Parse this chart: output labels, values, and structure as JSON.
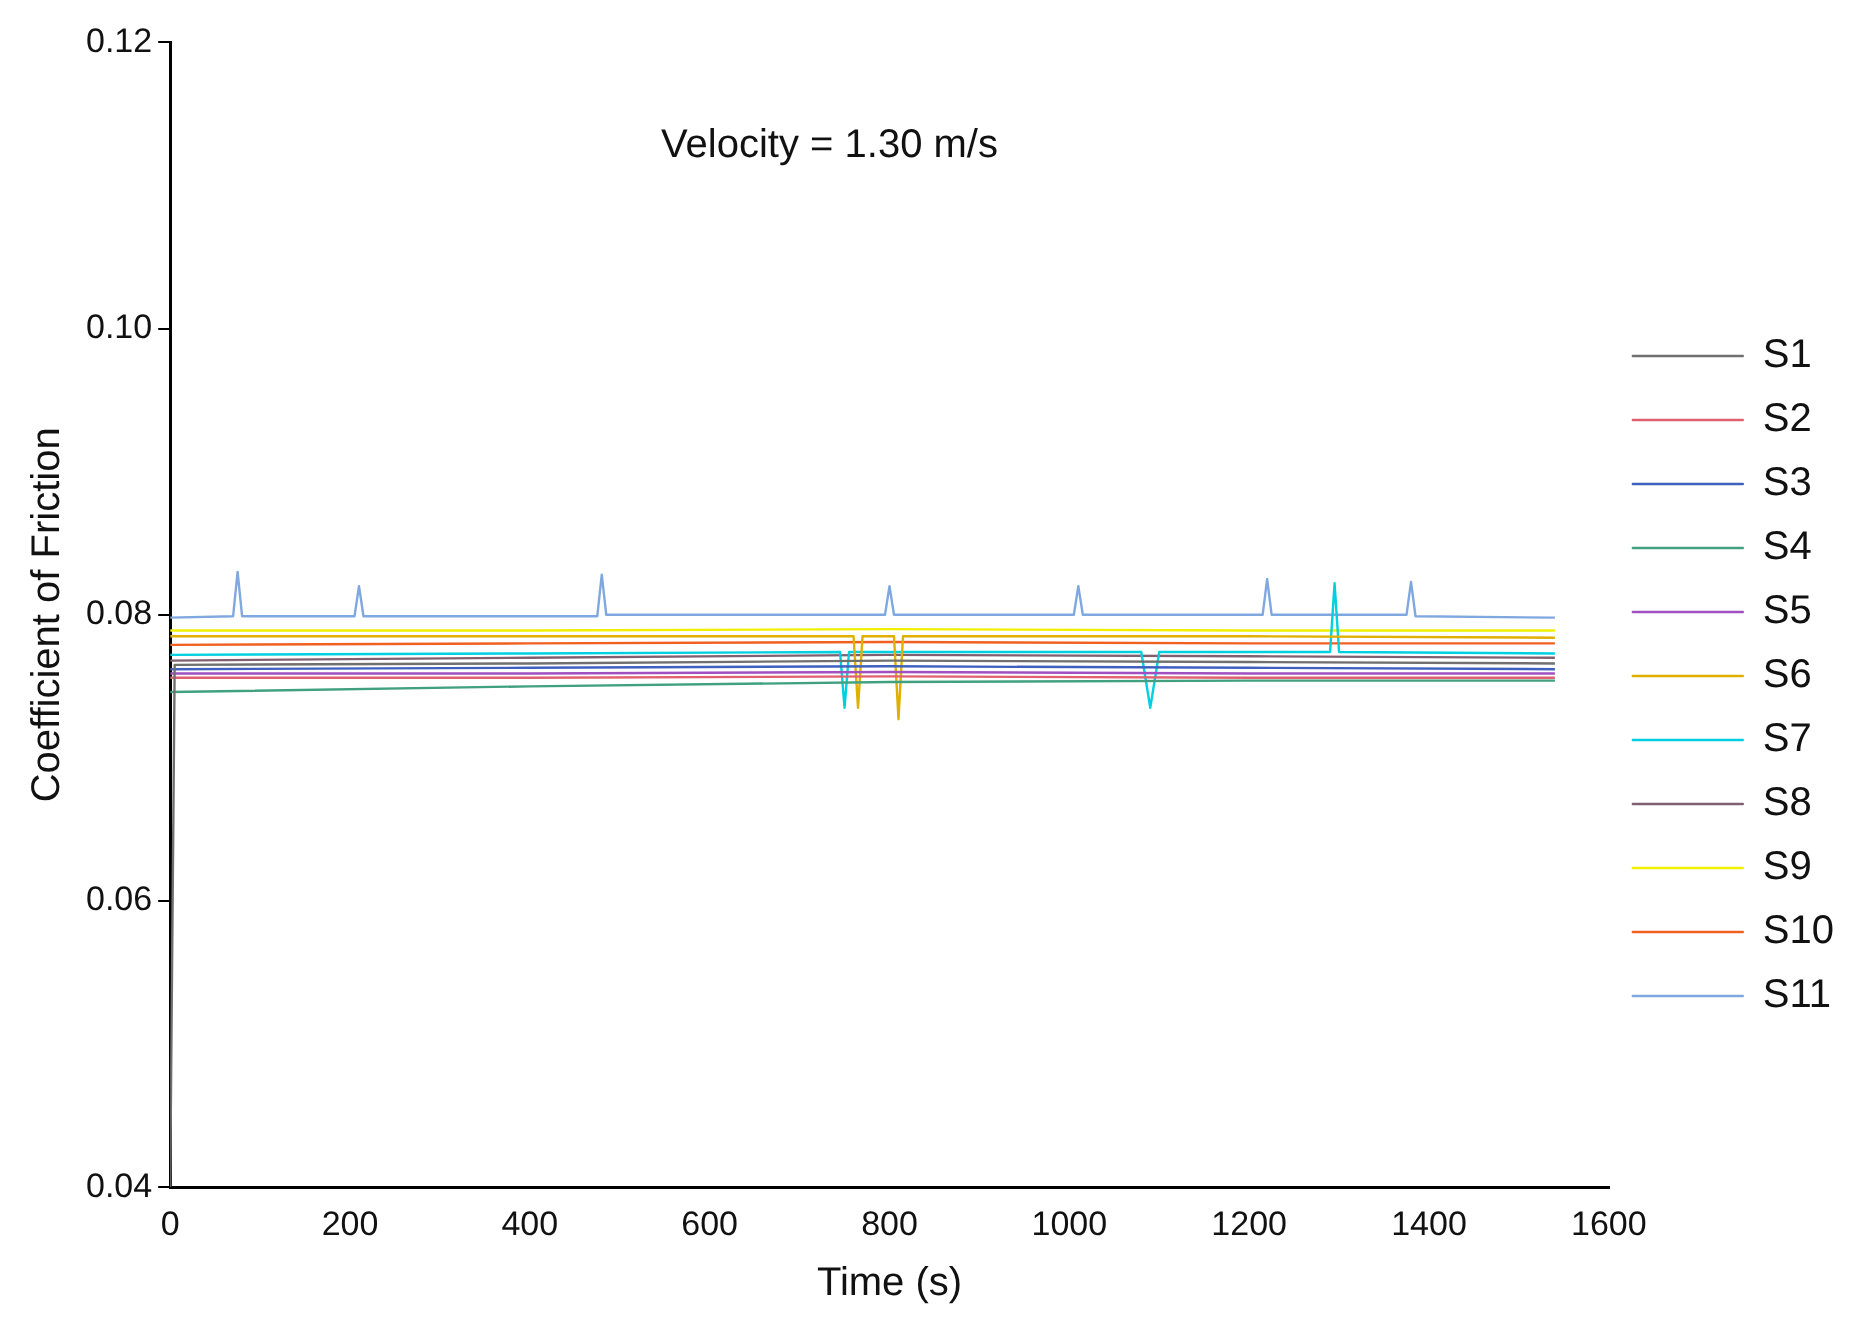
{
  "chart_data": {
    "type": "line",
    "xlabel": "Time (s)",
    "ylabel": "Coefficient of Friction",
    "annotations": [
      "Velocity = 1.30 m/s"
    ],
    "xlim": [
      0,
      1600
    ],
    "xticks": [
      0,
      200,
      400,
      600,
      800,
      1000,
      1200,
      1400,
      1600
    ],
    "ylim": [
      0.04,
      0.12
    ],
    "yticks": [
      {
        "value": 0.04,
        "label": "0.04"
      },
      {
        "value": 0.06,
        "label": "0.06"
      },
      {
        "value": 0.08,
        "label": "0.08"
      },
      {
        "value": 0.1,
        "label": "0.10"
      },
      {
        "value": 0.12,
        "label": "0.12"
      }
    ],
    "grid": false,
    "legend": "right",
    "marker": "none",
    "line_style": "solid",
    "series": [
      {
        "name": "S1",
        "color": "#707070",
        "x": [
          0,
          5,
          400,
          800,
          1200,
          1540
        ],
        "values": [
          0.04,
          0.0765,
          0.0766,
          0.0768,
          0.0767,
          0.0766
        ]
      },
      {
        "name": "S2",
        "color": "#e06070",
        "x": [
          0,
          400,
          800,
          1200,
          1540
        ],
        "values": [
          0.0756,
          0.0756,
          0.0757,
          0.0756,
          0.0756
        ]
      },
      {
        "name": "S3",
        "color": "#4060c0",
        "x": [
          0,
          400,
          800,
          1200,
          1540
        ],
        "values": [
          0.0762,
          0.0763,
          0.0764,
          0.0763,
          0.0762
        ]
      },
      {
        "name": "S4",
        "color": "#40a080",
        "x": [
          0,
          400,
          800,
          1200,
          1540
        ],
        "values": [
          0.0746,
          0.075,
          0.0753,
          0.0754,
          0.0754
        ]
      },
      {
        "name": "S5",
        "color": "#a050c0",
        "x": [
          0,
          400,
          800,
          1200,
          1540
        ],
        "values": [
          0.0759,
          0.0759,
          0.076,
          0.0759,
          0.0759
        ]
      },
      {
        "name": "S6",
        "color": "#e0b000",
        "x": [
          0,
          400,
          760,
          765,
          770,
          805,
          810,
          815,
          1200,
          1540
        ],
        "values": [
          0.0785,
          0.0785,
          0.0785,
          0.0735,
          0.0785,
          0.0785,
          0.0727,
          0.0785,
          0.0785,
          0.0784
        ]
      },
      {
        "name": "S7",
        "color": "#00d0e0",
        "x": [
          0,
          400,
          745,
          750,
          755,
          1080,
          1090,
          1100,
          1290,
          1295,
          1300,
          1540
        ],
        "values": [
          0.0772,
          0.0773,
          0.0774,
          0.0735,
          0.0774,
          0.0774,
          0.0735,
          0.0774,
          0.0774,
          0.0822,
          0.0774,
          0.0773
        ]
      },
      {
        "name": "S8",
        "color": "#806070",
        "x": [
          0,
          400,
          800,
          1200,
          1540
        ],
        "values": [
          0.0768,
          0.077,
          0.0772,
          0.0771,
          0.077
        ]
      },
      {
        "name": "S9",
        "color": "#f0f000",
        "x": [
          0,
          400,
          800,
          1200,
          1540
        ],
        "values": [
          0.0789,
          0.0789,
          0.079,
          0.0789,
          0.0789
        ]
      },
      {
        "name": "S10",
        "color": "#f06020",
        "x": [
          0,
          400,
          800,
          1200,
          1540
        ],
        "values": [
          0.0779,
          0.078,
          0.0781,
          0.078,
          0.078
        ]
      },
      {
        "name": "S11",
        "color": "#80a8e0",
        "x": [
          0,
          70,
          75,
          80,
          205,
          210,
          215,
          475,
          480,
          485,
          795,
          800,
          805,
          1005,
          1010,
          1015,
          1215,
          1220,
          1225,
          1375,
          1380,
          1385,
          1540
        ],
        "values": [
          0.0798,
          0.0799,
          0.083,
          0.0799,
          0.0799,
          0.082,
          0.0799,
          0.0799,
          0.0828,
          0.08,
          0.08,
          0.082,
          0.08,
          0.08,
          0.082,
          0.08,
          0.08,
          0.0825,
          0.08,
          0.08,
          0.0823,
          0.0799,
          0.0798
        ]
      }
    ]
  }
}
